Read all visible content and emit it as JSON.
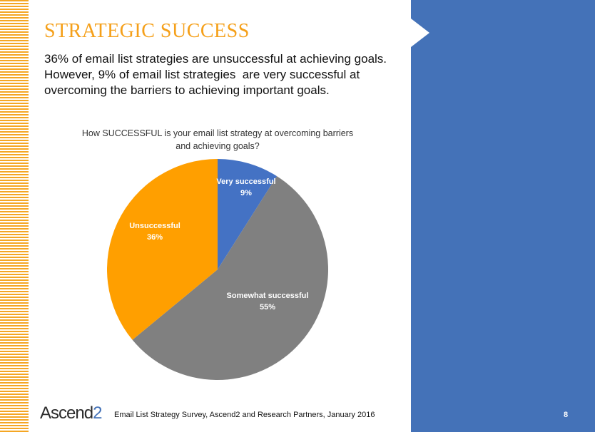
{
  "slide": {
    "title": "STRATEGIC SUCCESS",
    "subtitle_lines": [
      "36% of email list strategies are unsuccessful at achieving goals.",
      "However, 9% of email list strategies  are very successful at",
      "overcoming the barriers to achieving important goals."
    ],
    "logo": {
      "text": "Ascend",
      "accent": "2"
    },
    "source": "Email List Strategy Survey, Ascend2 and Research Partners, January 2016",
    "page_number": "8",
    "colors": {
      "stripe": "#f5a623",
      "title": "#f5a01a",
      "panel": "#4472b8"
    }
  },
  "chart_data": {
    "type": "pie",
    "title_lines": [
      "How SUCCESSFUL is your email list strategy at overcoming barriers",
      "and achieving goals?"
    ],
    "slices": [
      {
        "label": "Very successful",
        "value": 9,
        "value_label": "9%",
        "color": "#4472c4"
      },
      {
        "label": "Somewhat successful",
        "value": 55,
        "value_label": "55%",
        "color": "#808080"
      },
      {
        "label": "Unsuccessful",
        "value": 36,
        "value_label": "36%",
        "color": "#ff9f00"
      }
    ]
  }
}
